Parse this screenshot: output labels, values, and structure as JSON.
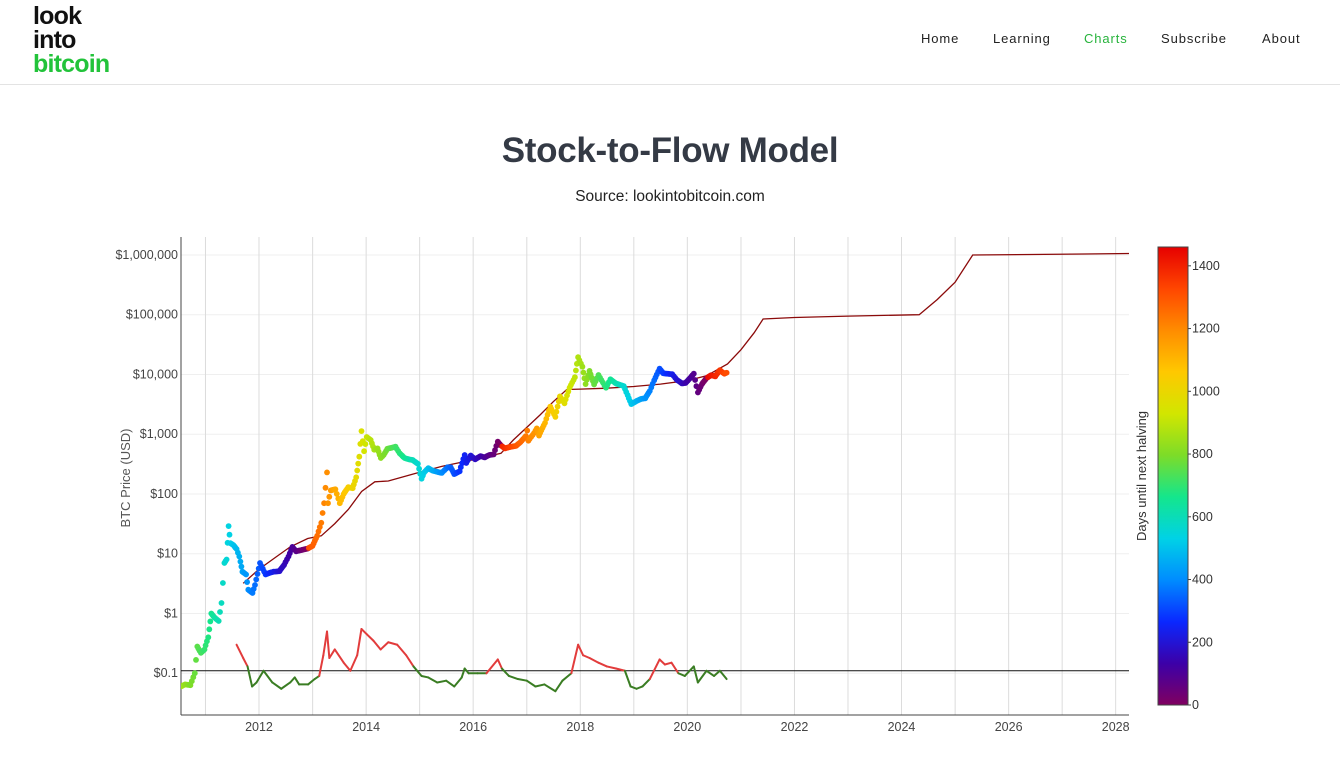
{
  "logo": {
    "line1": "look",
    "line2": "into",
    "line3": "bitcoin",
    "accent_color": "#22c33a"
  },
  "nav": [
    {
      "label": "Home",
      "active": false
    },
    {
      "label": "Learning",
      "active": false
    },
    {
      "label": "Charts",
      "active": true
    },
    {
      "label": "Subscribe",
      "active": false
    },
    {
      "label": "About",
      "active": false
    }
  ],
  "page": {
    "title": "Stock-to-Flow Model",
    "subtitle": "Source: lookintobitcoin.com"
  },
  "chart_data": {
    "type": "scatter",
    "title": "Stock-to-Flow Model",
    "ylabel": "BTC Price (USD)",
    "xlabel": "",
    "y_scale": "log",
    "ylim": [
      0.02,
      2000000
    ],
    "xlim": [
      "2010-07-18",
      "2028-04-01"
    ],
    "grid": true,
    "x_ticks": [
      "2012",
      "2014",
      "2016",
      "2018",
      "2020",
      "2022",
      "2024",
      "2026",
      "2028"
    ],
    "y_ticks": [
      {
        "value": 0.1,
        "label": "$0.1"
      },
      {
        "value": 1,
        "label": "$1"
      },
      {
        "value": 10,
        "label": "$10"
      },
      {
        "value": 100,
        "label": "$100"
      },
      {
        "value": 1000,
        "label": "$1,000"
      },
      {
        "value": 10000,
        "label": "$10,000"
      },
      {
        "value": 100000,
        "label": "$100,000"
      },
      {
        "value": 1000000,
        "label": "$1,000,000"
      }
    ],
    "colorbar": {
      "title": "Days until next halving",
      "min": 0,
      "max": 1460,
      "ticks": [
        0,
        200,
        400,
        600,
        800,
        1000,
        1200,
        1400
      ],
      "colors": [
        "#800060",
        "#3c00a8",
        "#0a28ff",
        "#008cff",
        "#00d2e6",
        "#14e68c",
        "#7ddc28",
        "#d2e600",
        "#ffc800",
        "#ff8c00",
        "#ff4600",
        "#e60000"
      ]
    },
    "halvings": [
      "2012-11-28",
      "2016-07-09",
      "2020-05-11",
      "2024-05-01",
      "2028-03-30"
    ],
    "series": [
      {
        "kind": "btc_price",
        "points": [
          [
            "2010-07-18",
            0.06
          ],
          [
            "2010-08-15",
            0.065
          ],
          [
            "2010-09-20",
            0.063
          ],
          [
            "2010-10-20",
            0.1
          ],
          [
            "2010-11-06",
            0.28
          ],
          [
            "2010-12-01",
            0.22
          ],
          [
            "2010-12-25",
            0.25
          ],
          [
            "2011-01-20",
            0.4
          ],
          [
            "2011-02-10",
            1.0
          ],
          [
            "2011-03-05",
            0.85
          ],
          [
            "2011-04-01",
            0.75
          ],
          [
            "2011-04-20",
            1.5
          ],
          [
            "2011-05-10",
            7
          ],
          [
            "2011-05-25",
            8
          ],
          [
            "2011-06-08",
            29
          ],
          [
            "2011-06-20",
            15
          ],
          [
            "2011-07-10",
            14
          ],
          [
            "2011-08-01",
            12
          ],
          [
            "2011-08-20",
            9
          ],
          [
            "2011-09-10",
            5
          ],
          [
            "2011-10-05",
            4.5
          ],
          [
            "2011-10-20",
            2.5
          ],
          [
            "2011-11-18",
            2.2
          ],
          [
            "2011-12-05",
            3
          ],
          [
            "2012-01-08",
            7
          ],
          [
            "2012-02-15",
            4.5
          ],
          [
            "2012-03-15",
            4.8
          ],
          [
            "2012-04-10",
            5
          ],
          [
            "2012-05-20",
            5.1
          ],
          [
            "2012-06-20",
            6.5
          ],
          [
            "2012-07-20",
            9
          ],
          [
            "2012-08-16",
            13
          ],
          [
            "2012-09-10",
            11
          ],
          [
            "2012-10-15",
            11.5
          ],
          [
            "2012-11-28",
            12.2
          ],
          [
            "2012-12-31",
            13.5
          ],
          [
            "2013-02-01",
            20
          ],
          [
            "2013-03-01",
            33
          ],
          [
            "2013-03-20",
            70
          ],
          [
            "2013-04-09",
            230
          ],
          [
            "2013-04-16",
            70
          ],
          [
            "2013-05-05",
            115
          ],
          [
            "2013-06-05",
            120
          ],
          [
            "2013-07-05",
            70
          ],
          [
            "2013-08-01",
            100
          ],
          [
            "2013-09-01",
            130
          ],
          [
            "2013-10-01",
            125
          ],
          [
            "2013-10-25",
            190
          ],
          [
            "2013-11-15",
            420
          ],
          [
            "2013-11-30",
            1130
          ],
          [
            "2013-12-18",
            520
          ],
          [
            "2014-01-05",
            900
          ],
          [
            "2014-02-01",
            800
          ],
          [
            "2014-02-25",
            550
          ],
          [
            "2014-03-20",
            580
          ],
          [
            "2014-04-11",
            400
          ],
          [
            "2014-05-01",
            450
          ],
          [
            "2014-05-25",
            570
          ],
          [
            "2014-06-20",
            590
          ],
          [
            "2014-07-20",
            620
          ],
          [
            "2014-08-18",
            480
          ],
          [
            "2014-09-20",
            400
          ],
          [
            "2014-10-20",
            380
          ],
          [
            "2014-11-15",
            370
          ],
          [
            "2014-12-20",
            320
          ],
          [
            "2015-01-14",
            180
          ],
          [
            "2015-02-01",
            230
          ],
          [
            "2015-03-01",
            270
          ],
          [
            "2015-04-01",
            245
          ],
          [
            "2015-05-01",
            235
          ],
          [
            "2015-06-01",
            225
          ],
          [
            "2015-07-10",
            280
          ],
          [
            "2015-08-01",
            280
          ],
          [
            "2015-08-25",
            215
          ],
          [
            "2015-10-01",
            240
          ],
          [
            "2015-11-04",
            450
          ],
          [
            "2015-11-15",
            330
          ],
          [
            "2015-12-15",
            440
          ],
          [
            "2016-01-15",
            380
          ],
          [
            "2016-02-20",
            430
          ],
          [
            "2016-03-20",
            410
          ],
          [
            "2016-04-20",
            450
          ],
          [
            "2016-05-20",
            460
          ],
          [
            "2016-06-17",
            750
          ],
          [
            "2016-07-09",
            650
          ],
          [
            "2016-08-05",
            580
          ],
          [
            "2016-09-05",
            610
          ],
          [
            "2016-10-20",
            640
          ],
          [
            "2016-11-20",
            740
          ],
          [
            "2016-12-25",
            930
          ],
          [
            "2017-01-04",
            1150
          ],
          [
            "2017-01-12",
            780
          ],
          [
            "2017-02-20",
            1050
          ],
          [
            "2017-03-10",
            1250
          ],
          [
            "2017-03-25",
            950
          ],
          [
            "2017-05-05",
            1550
          ],
          [
            "2017-06-10",
            2900
          ],
          [
            "2017-07-15",
            1950
          ],
          [
            "2017-08-15",
            4300
          ],
          [
            "2017-09-15",
            3300
          ],
          [
            "2017-10-20",
            6000
          ],
          [
            "2017-11-25",
            9000
          ],
          [
            "2017-12-17",
            19500
          ],
          [
            "2018-01-15",
            13500
          ],
          [
            "2018-02-06",
            6900
          ],
          [
            "2018-03-05",
            11500
          ],
          [
            "2018-04-05",
            6800
          ],
          [
            "2018-05-05",
            9800
          ],
          [
            "2018-06-25",
            6000
          ],
          [
            "2018-07-25",
            8300
          ],
          [
            "2018-09-05",
            7000
          ],
          [
            "2018-10-25",
            6400
          ],
          [
            "2018-11-20",
            4500
          ],
          [
            "2018-12-15",
            3200
          ],
          [
            "2019-01-20",
            3600
          ],
          [
            "2019-02-20",
            3900
          ],
          [
            "2019-03-20",
            4000
          ],
          [
            "2019-04-20",
            5300
          ],
          [
            "2019-05-20",
            8000
          ],
          [
            "2019-06-26",
            12500
          ],
          [
            "2019-07-20",
            10500
          ],
          [
            "2019-08-15",
            10300
          ],
          [
            "2019-09-20",
            10100
          ],
          [
            "2019-10-20",
            8200
          ],
          [
            "2019-11-25",
            7100
          ],
          [
            "2019-12-20",
            7200
          ],
          [
            "2020-01-20",
            8700
          ],
          [
            "2020-02-14",
            10300
          ],
          [
            "2020-03-13",
            5000
          ],
          [
            "2020-04-10",
            6900
          ],
          [
            "2020-05-11",
            8700
          ],
          [
            "2020-06-10",
            9700
          ],
          [
            "2020-07-10",
            9300
          ],
          [
            "2020-08-10",
            11800
          ],
          [
            "2020-09-10",
            10300
          ],
          [
            "2020-09-25",
            10700
          ]
        ]
      },
      {
        "kind": "stock_to_flow_model",
        "color": "#8b0a0a",
        "points": [
          [
            "2011-09-15",
            3.2
          ],
          [
            "2012-01-01",
            5.5
          ],
          [
            "2012-05-01",
            9
          ],
          [
            "2012-08-01",
            13
          ],
          [
            "2012-11-28",
            18
          ],
          [
            "2013-03-01",
            20
          ],
          [
            "2013-06-01",
            32
          ],
          [
            "2013-09-01",
            55
          ],
          [
            "2013-12-01",
            110
          ],
          [
            "2014-03-01",
            160
          ],
          [
            "2014-06-01",
            165
          ],
          [
            "2014-12-01",
            220
          ],
          [
            "2015-06-01",
            290
          ],
          [
            "2015-12-01",
            360
          ],
          [
            "2016-07-09",
            480
          ],
          [
            "2016-10-01",
            800
          ],
          [
            "2017-01-01",
            1300
          ],
          [
            "2017-04-01",
            2100
          ],
          [
            "2017-07-01",
            3500
          ],
          [
            "2017-10-01",
            5600
          ],
          [
            "2018-01-01",
            5700
          ],
          [
            "2018-07-01",
            5900
          ],
          [
            "2019-01-01",
            6300
          ],
          [
            "2019-07-01",
            6900
          ],
          [
            "2020-01-01",
            7900
          ],
          [
            "2020-05-11",
            9500
          ],
          [
            "2020-10-01",
            15000
          ],
          [
            "2021-01-01",
            26000
          ],
          [
            "2021-04-01",
            50000
          ],
          [
            "2021-06-01",
            85000
          ],
          [
            "2022-01-01",
            90000
          ],
          [
            "2023-01-01",
            95000
          ],
          [
            "2024-05-01",
            100000
          ],
          [
            "2024-09-01",
            180000
          ],
          [
            "2025-01-01",
            350000
          ],
          [
            "2025-05-01",
            1000000
          ],
          [
            "2026-06-01",
            1020000
          ],
          [
            "2027-06-01",
            1040000
          ],
          [
            "2028-04-01",
            1060000
          ]
        ]
      },
      {
        "kind": "price_to_model_ratio",
        "reference_line": 0.11,
        "above_color": "#e23c3c",
        "below_color": "#3a7d23",
        "points": [
          [
            "2011-08-01",
            0.3
          ],
          [
            "2011-09-15",
            0.18
          ],
          [
            "2011-10-15",
            0.13
          ],
          [
            "2011-11-15",
            0.06
          ],
          [
            "2011-12-15",
            0.07
          ],
          [
            "2012-02-01",
            0.11
          ],
          [
            "2012-04-01",
            0.07
          ],
          [
            "2012-06-01",
            0.055
          ],
          [
            "2012-08-01",
            0.07
          ],
          [
            "2012-09-01",
            0.085
          ],
          [
            "2012-10-01",
            0.065
          ],
          [
            "2012-12-01",
            0.065
          ],
          [
            "2013-01-15",
            0.08
          ],
          [
            "2013-02-15",
            0.09
          ],
          [
            "2013-03-15",
            0.2
          ],
          [
            "2013-04-09",
            0.5
          ],
          [
            "2013-04-25",
            0.18
          ],
          [
            "2013-06-01",
            0.25
          ],
          [
            "2013-08-01",
            0.15
          ],
          [
            "2013-09-15",
            0.11
          ],
          [
            "2013-11-01",
            0.2
          ],
          [
            "2013-11-30",
            0.55
          ],
          [
            "2014-01-05",
            0.45
          ],
          [
            "2014-02-20",
            0.35
          ],
          [
            "2014-04-10",
            0.25
          ],
          [
            "2014-06-01",
            0.33
          ],
          [
            "2014-08-01",
            0.3
          ],
          [
            "2014-10-01",
            0.2
          ],
          [
            "2014-11-20",
            0.13
          ],
          [
            "2015-01-14",
            0.09
          ],
          [
            "2015-03-01",
            0.085
          ],
          [
            "2015-05-01",
            0.07
          ],
          [
            "2015-07-01",
            0.075
          ],
          [
            "2015-08-25",
            0.06
          ],
          [
            "2015-10-15",
            0.085
          ],
          [
            "2015-11-04",
            0.12
          ],
          [
            "2015-12-01",
            0.1
          ],
          [
            "2016-02-01",
            0.1
          ],
          [
            "2016-04-01",
            0.1
          ],
          [
            "2016-06-17",
            0.17
          ],
          [
            "2016-07-15",
            0.12
          ],
          [
            "2016-09-01",
            0.09
          ],
          [
            "2016-11-01",
            0.08
          ],
          [
            "2017-01-01",
            0.075
          ],
          [
            "2017-03-01",
            0.06
          ],
          [
            "2017-05-01",
            0.065
          ],
          [
            "2017-07-15",
            0.05
          ],
          [
            "2017-09-01",
            0.075
          ],
          [
            "2017-11-01",
            0.1
          ],
          [
            "2017-12-17",
            0.3
          ],
          [
            "2018-01-20",
            0.2
          ],
          [
            "2018-03-05",
            0.18
          ],
          [
            "2018-05-05",
            0.15
          ],
          [
            "2018-07-01",
            0.13
          ],
          [
            "2018-09-01",
            0.12
          ],
          [
            "2018-11-01",
            0.11
          ],
          [
            "2018-12-10",
            0.06
          ],
          [
            "2019-01-20",
            0.055
          ],
          [
            "2019-03-01",
            0.06
          ],
          [
            "2019-04-20",
            0.08
          ],
          [
            "2019-06-26",
            0.17
          ],
          [
            "2019-08-01",
            0.14
          ],
          [
            "2019-09-15",
            0.15
          ],
          [
            "2019-11-01",
            0.1
          ],
          [
            "2019-12-15",
            0.09
          ],
          [
            "2020-02-14",
            0.13
          ],
          [
            "2020-03-13",
            0.07
          ],
          [
            "2020-05-11",
            0.11
          ],
          [
            "2020-07-01",
            0.09
          ],
          [
            "2020-08-10",
            0.11
          ],
          [
            "2020-09-25",
            0.08
          ]
        ]
      }
    ]
  }
}
